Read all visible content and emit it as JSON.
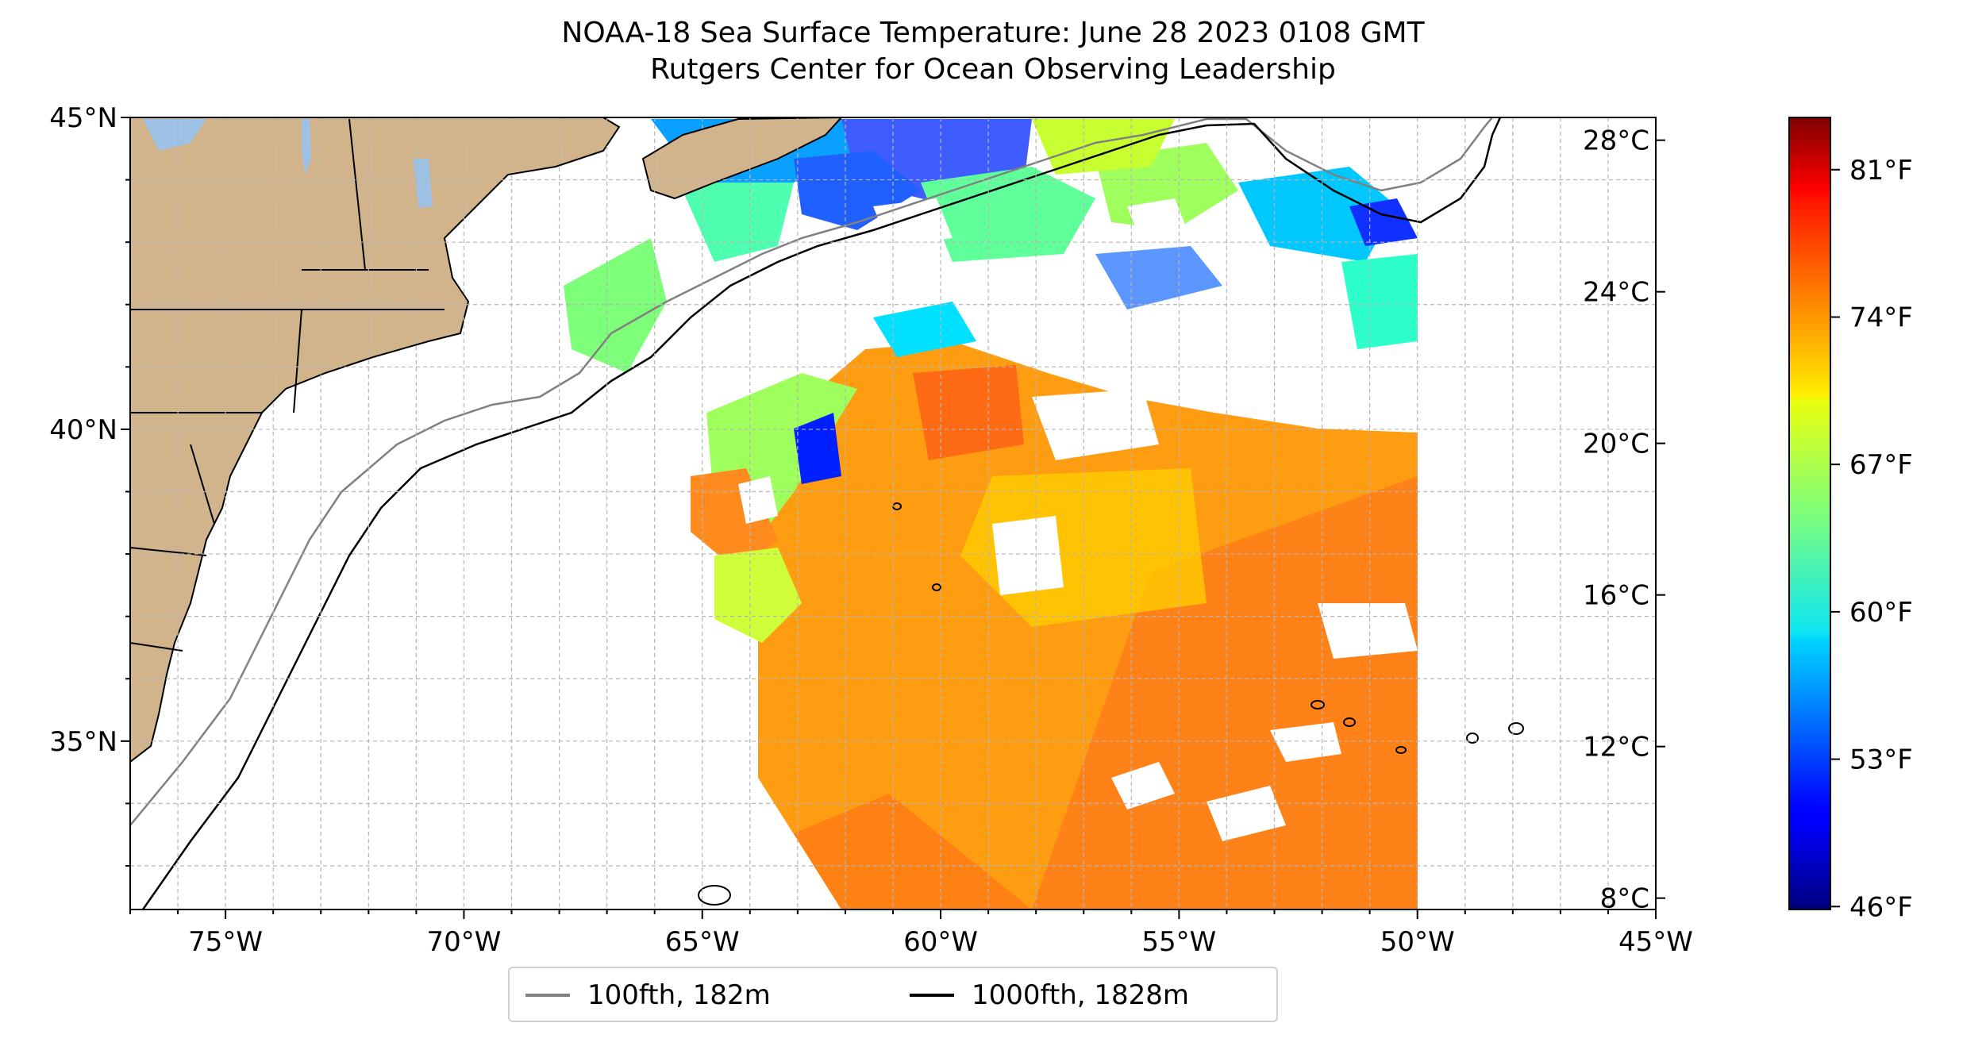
{
  "title": {
    "line1": "NOAA-18 Sea Surface Temperature: June 28 2023 0108 GMT",
    "line2": "Rutgers Center for Ocean Observing Leadership"
  },
  "map": {
    "extent": {
      "lon_min": -77,
      "lon_max": -45,
      "lat_min": 32.3,
      "lat_max": 45
    },
    "lat_labels": [
      "45°N",
      "40°N",
      "35°N"
    ],
    "lon_labels": [
      "75°W",
      "70°W",
      "65°W",
      "60°W",
      "55°W",
      "50°W",
      "45°W"
    ],
    "land_color": "#d2b48c",
    "lake_color": "#9ec2e6",
    "grid": true
  },
  "legend": {
    "items": [
      {
        "label": "100fth, 182m",
        "color": "#808080"
      },
      {
        "label": "1000fth, 1828m",
        "color": "#000000"
      }
    ],
    "placement": "bottom-center"
  },
  "colorbar": {
    "colormap": "jet",
    "celsius": {
      "min": 7.7,
      "max": 28.6,
      "labels": [
        "28°C",
        "24°C",
        "20°C",
        "16°C",
        "12°C",
        "8°C"
      ]
    },
    "fahrenheit": {
      "labels": [
        "81°F",
        "74°F",
        "67°F",
        "60°F",
        "53°F",
        "46°F"
      ]
    }
  }
}
